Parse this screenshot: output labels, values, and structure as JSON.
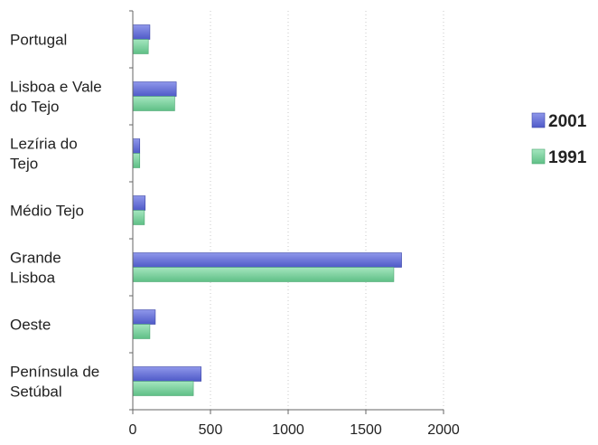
{
  "chart_data": {
    "type": "bar",
    "orientation": "horizontal",
    "categories": [
      [
        "Portugal"
      ],
      [
        "Lisboa e Vale",
        "do Tejo"
      ],
      [
        "Lezíria do",
        "Tejo"
      ],
      [
        "Médio Tejo"
      ],
      [
        "Grande",
        "Lisboa"
      ],
      [
        "Oeste"
      ],
      [
        "Península de",
        "Setúbal"
      ]
    ],
    "series": [
      {
        "name": "2001",
        "color": "#6670d6",
        "values": [
          110,
          280,
          45,
          80,
          1730,
          145,
          440
        ]
      },
      {
        "name": "1991",
        "color": "#7fd3a0",
        "values": [
          100,
          270,
          45,
          75,
          1680,
          110,
          390
        ]
      }
    ],
    "xticks": [
      "0",
      "500",
      "1000",
      "1500",
      "2000"
    ],
    "xlim": [
      0,
      2000
    ],
    "title": "",
    "xlabel": "",
    "ylabel": "",
    "grid": "vertical dotted",
    "legend_position": "right"
  }
}
